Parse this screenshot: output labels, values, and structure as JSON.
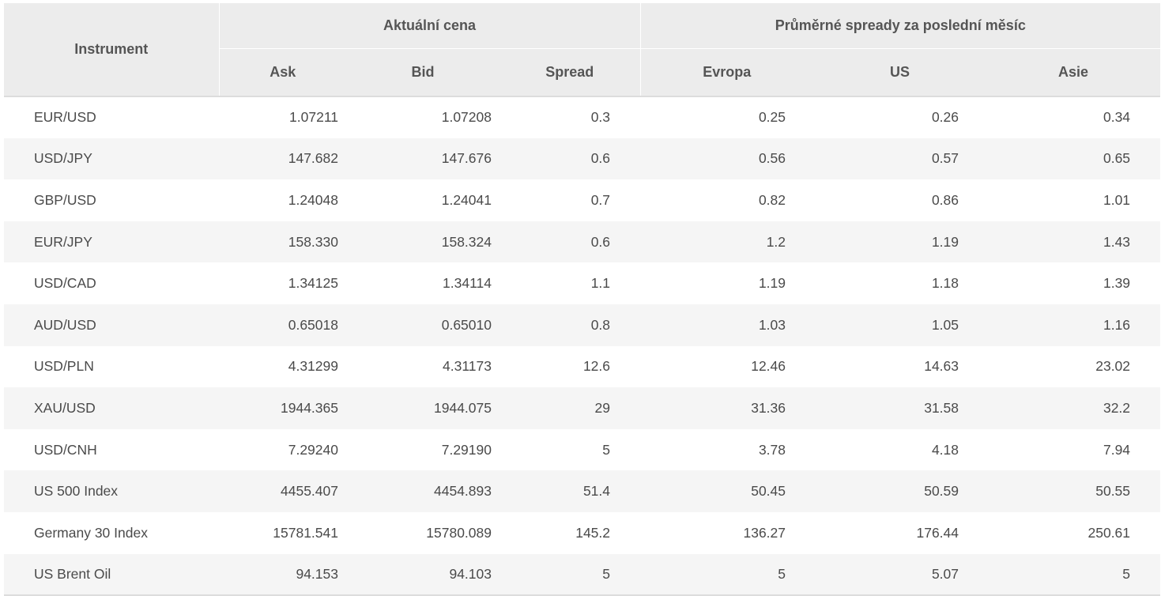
{
  "headers": {
    "instrument": "Instrument",
    "current_price_group": "Aktuální cena",
    "avg_spreads_group": "Průměrné spready za poslední měsíc",
    "ask": "Ask",
    "bid": "Bid",
    "spread": "Spread",
    "europe": "Evropa",
    "us": "US",
    "asia": "Asie"
  },
  "rows": [
    {
      "instrument": "EUR/USD",
      "ask": "1.07211",
      "bid": "1.07208",
      "spread": "0.3",
      "europe": "0.25",
      "us": "0.26",
      "asia": "0.34"
    },
    {
      "instrument": "USD/JPY",
      "ask": "147.682",
      "bid": "147.676",
      "spread": "0.6",
      "europe": "0.56",
      "us": "0.57",
      "asia": "0.65"
    },
    {
      "instrument": "GBP/USD",
      "ask": "1.24048",
      "bid": "1.24041",
      "spread": "0.7",
      "europe": "0.82",
      "us": "0.86",
      "asia": "1.01"
    },
    {
      "instrument": "EUR/JPY",
      "ask": "158.330",
      "bid": "158.324",
      "spread": "0.6",
      "europe": "1.2",
      "us": "1.19",
      "asia": "1.43"
    },
    {
      "instrument": "USD/CAD",
      "ask": "1.34125",
      "bid": "1.34114",
      "spread": "1.1",
      "europe": "1.19",
      "us": "1.18",
      "asia": "1.39"
    },
    {
      "instrument": "AUD/USD",
      "ask": "0.65018",
      "bid": "0.65010",
      "spread": "0.8",
      "europe": "1.03",
      "us": "1.05",
      "asia": "1.16"
    },
    {
      "instrument": "USD/PLN",
      "ask": "4.31299",
      "bid": "4.31173",
      "spread": "12.6",
      "europe": "12.46",
      "us": "14.63",
      "asia": "23.02"
    },
    {
      "instrument": "XAU/USD",
      "ask": "1944.365",
      "bid": "1944.075",
      "spread": "29",
      "europe": "31.36",
      "us": "31.58",
      "asia": "32.2"
    },
    {
      "instrument": "USD/CNH",
      "ask": "7.29240",
      "bid": "7.29190",
      "spread": "5",
      "europe": "3.78",
      "us": "4.18",
      "asia": "7.94"
    },
    {
      "instrument": "US 500 Index",
      "ask": "4455.407",
      "bid": "4454.893",
      "spread": "51.4",
      "europe": "50.45",
      "us": "50.59",
      "asia": "50.55"
    },
    {
      "instrument": "Germany 30 Index",
      "ask": "15781.541",
      "bid": "15780.089",
      "spread": "145.2",
      "europe": "136.27",
      "us": "176.44",
      "asia": "250.61"
    },
    {
      "instrument": "US Brent Oil",
      "ask": "94.153",
      "bid": "94.103",
      "spread": "5",
      "europe": "5",
      "us": "5.07",
      "asia": "5"
    }
  ]
}
